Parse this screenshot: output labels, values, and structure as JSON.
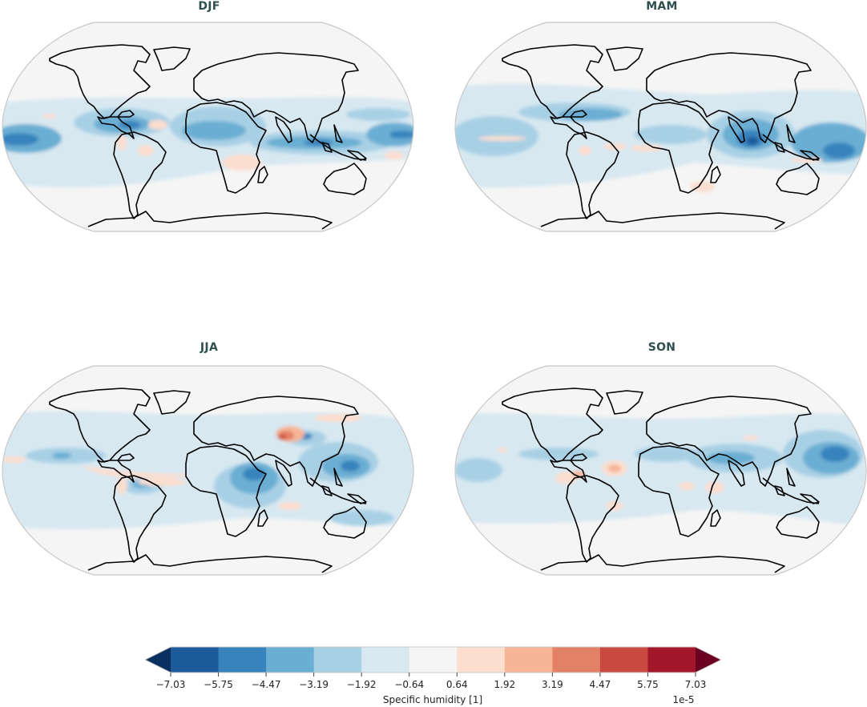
{
  "chart_data": {
    "type": "heatmap",
    "subtype": "geographic-filled-contour",
    "projection": "Robinson",
    "variable": "Specific humidity [1]",
    "scale_factor": "1e-5",
    "panels": [
      {
        "title": "DJF",
        "features": [
          {
            "region": "Equatorial East Pacific",
            "sign": "negative",
            "level": -4.47
          },
          {
            "region": "Caribbean / northern South America",
            "sign": "negative",
            "level": -4.47
          },
          {
            "region": "Central Africa / Gulf of Guinea",
            "sign": "negative",
            "level": -3.19
          },
          {
            "region": "Indian Ocean / Maritime Continent",
            "sign": "negative",
            "level": -4.47
          },
          {
            "region": "Western Pacific",
            "sign": "negative",
            "level": -4.47
          },
          {
            "region": "Brazil",
            "sign": "positive",
            "level": 0.64
          },
          {
            "region": "Southern Africa",
            "sign": "positive",
            "level": 0.64
          }
        ]
      },
      {
        "title": "MAM",
        "features": [
          {
            "region": "Bay of Bengal / Indian Ocean",
            "sign": "negative",
            "level": -5.75
          },
          {
            "region": "Western Pacific",
            "sign": "negative",
            "level": -4.47
          },
          {
            "region": "Tropical Atlantic",
            "sign": "positive",
            "level": 0.64
          },
          {
            "region": "Central Pacific",
            "sign": "positive",
            "level": 0.64
          },
          {
            "region": "Southern Africa",
            "sign": "positive",
            "level": 0.64
          }
        ]
      },
      {
        "title": "JJA",
        "features": [
          {
            "region": "Tibetan Plateau / Himalaya",
            "sign": "positive",
            "level": 5.75
          },
          {
            "region": "East Asia",
            "sign": "negative",
            "level": -3.19
          },
          {
            "region": "Arabian Sea / East Africa",
            "sign": "negative",
            "level": -3.19
          },
          {
            "region": "Philippine Sea",
            "sign": "negative",
            "level": -4.47
          },
          {
            "region": "Tropical Atlantic",
            "sign": "positive",
            "level": 0.64
          },
          {
            "region": "Eastern Pacific",
            "sign": "negative",
            "level": -1.92
          }
        ]
      },
      {
        "title": "SON",
        "features": [
          {
            "region": "Western Pacific",
            "sign": "negative",
            "level": -4.47
          },
          {
            "region": "Indian Ocean",
            "sign": "negative",
            "level": -4.47
          },
          {
            "region": "Tropical Atlantic (off NE Brazil)",
            "sign": "positive",
            "level": 3.19
          },
          {
            "region": "Peru / western South America",
            "sign": "positive",
            "level": 1.92
          },
          {
            "region": "Southeast South America",
            "sign": "positive",
            "level": 0.64
          }
        ]
      }
    ],
    "colorbar": {
      "label": "Specific humidity [1]",
      "exponent_label": "1e-5",
      "extend": "both",
      "ticks": [
        -7.03,
        -5.75,
        -4.47,
        -3.19,
        -1.92,
        -0.64,
        0.64,
        1.92,
        3.19,
        4.47,
        5.75,
        7.03
      ],
      "tick_labels": [
        "−7.03",
        "−5.75",
        "−4.47",
        "−3.19",
        "−1.92",
        "−0.64",
        "0.64",
        "1.92",
        "3.19",
        "4.47",
        "5.75",
        "7.03"
      ],
      "colors": [
        "#1c5a9a",
        "#3883bd",
        "#6aaed3",
        "#a8d0e5",
        "#d7e8f1",
        "#f5f5f5",
        "#fcdecf",
        "#f6b597",
        "#e38166",
        "#c94941",
        "#a4172b"
      ],
      "under_color": "#0c2f61",
      "over_color": "#6b0020",
      "cmap": "RdBu_r"
    }
  },
  "panels": [
    {
      "title": "DJF"
    },
    {
      "title": "MAM"
    },
    {
      "title": "JJA"
    },
    {
      "title": "SON"
    }
  ],
  "colorbar": {
    "label": "Specific humidity [1]",
    "exponent": "1e-5",
    "ticks": [
      "−7.03",
      "−5.75",
      "−4.47",
      "−3.19",
      "−1.92",
      "−0.64",
      "0.64",
      "1.92",
      "3.19",
      "4.47",
      "5.75",
      "7.03"
    ]
  }
}
